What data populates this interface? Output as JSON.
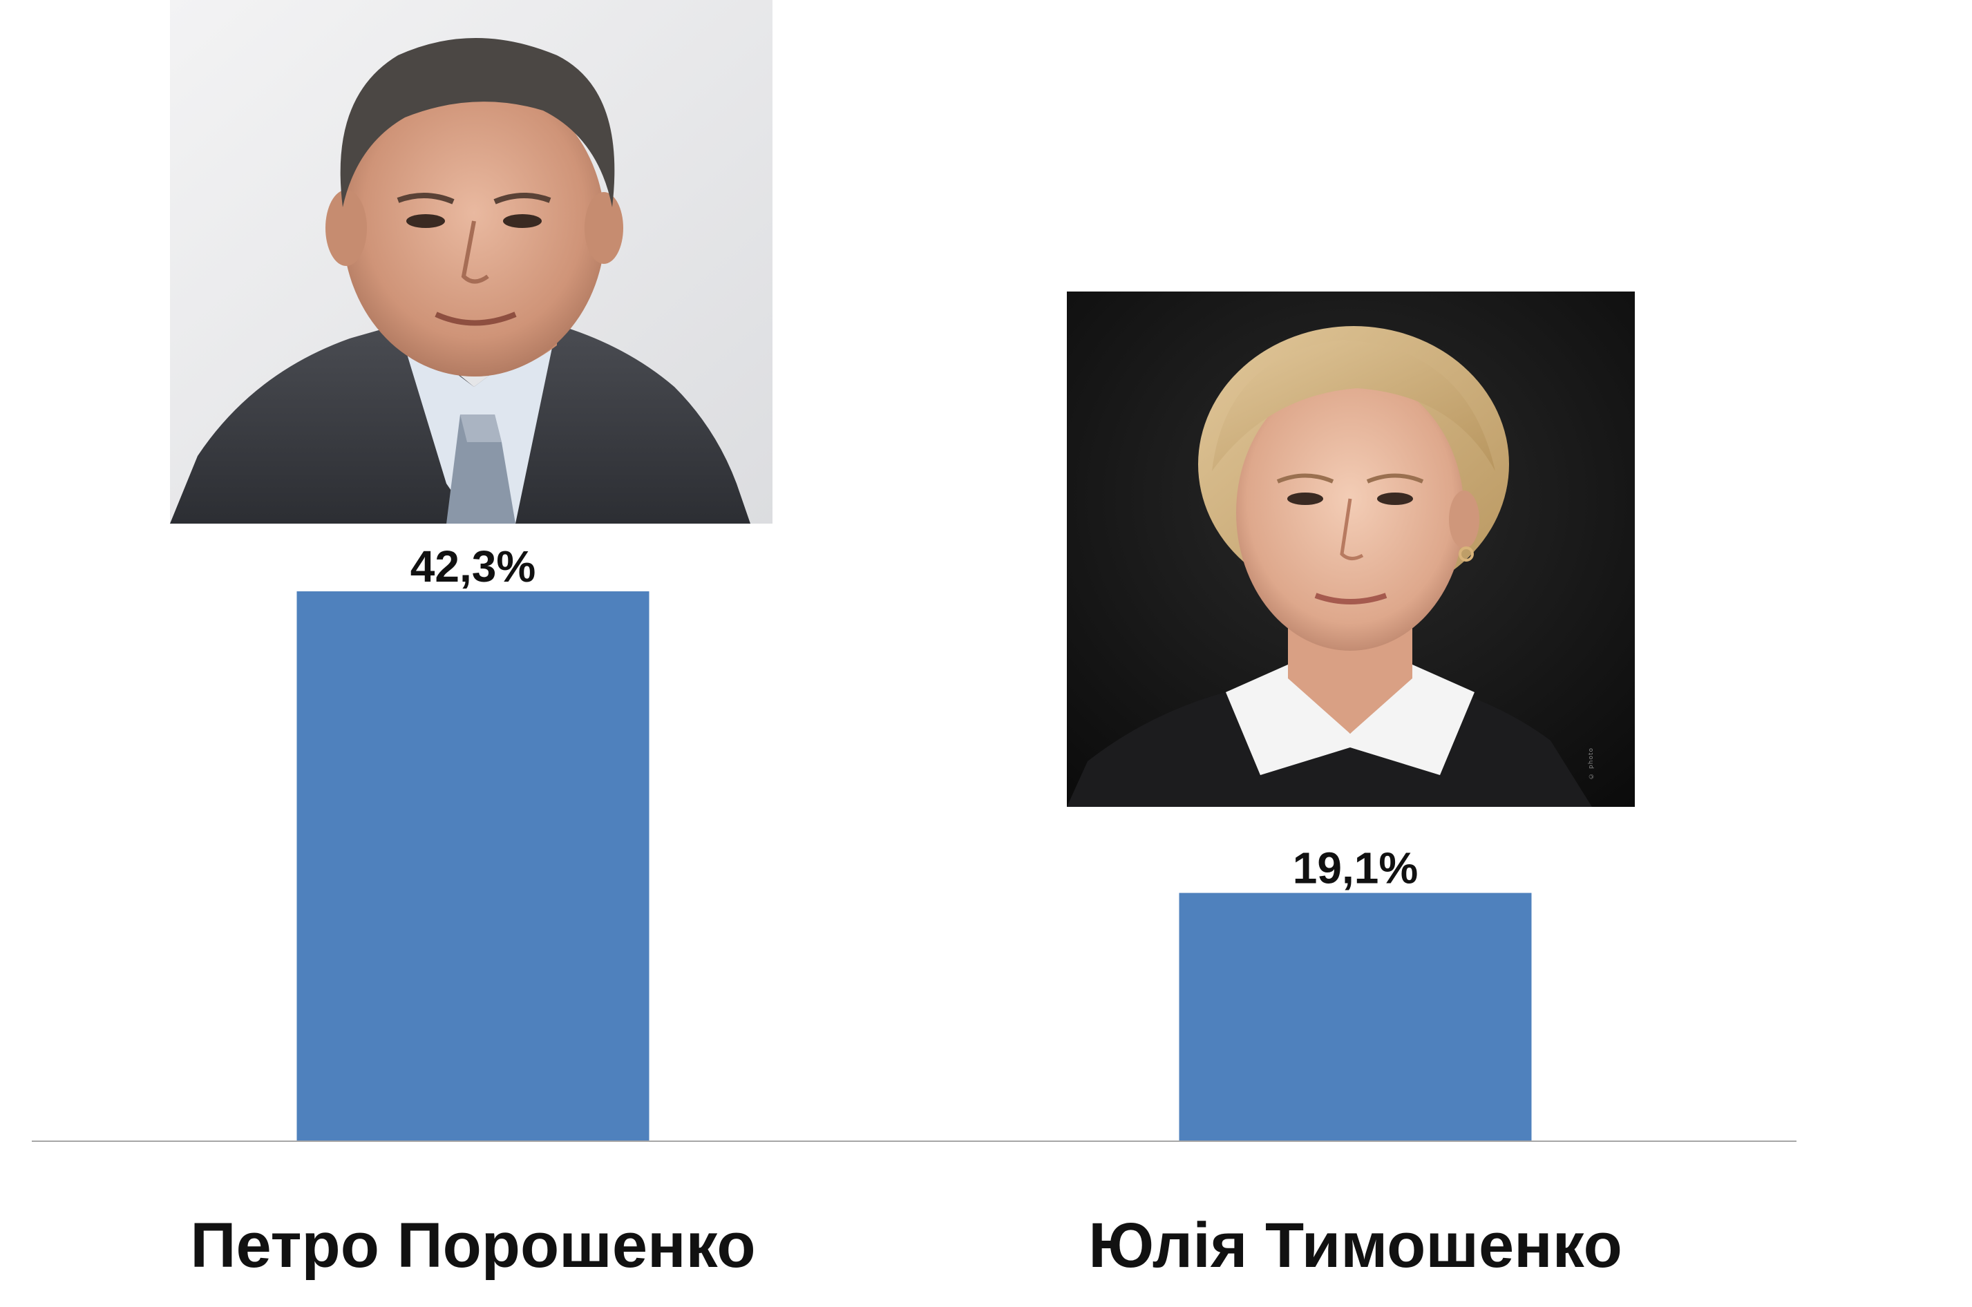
{
  "chart_data": {
    "type": "bar",
    "categories": [
      "Петро Порошенко",
      "Юлія Тимошенко"
    ],
    "values": [
      42.3,
      19.1
    ],
    "value_labels": [
      "42,3%",
      "19,1%"
    ],
    "unit": "%",
    "title": "",
    "xlabel": "",
    "ylabel": "",
    "ylim": [
      0,
      42.3
    ],
    "grid": false,
    "legend": "none",
    "bar_color": "#4F81BD",
    "axis_color": "#A6A6A6"
  },
  "photos": [
    {
      "subject": "Петро Порошенко",
      "icon": "portrait-photo-man-suit"
    },
    {
      "subject": "Юлія Тимошенко",
      "icon": "portrait-photo-woman-dark",
      "watermark": "© photo"
    }
  ]
}
